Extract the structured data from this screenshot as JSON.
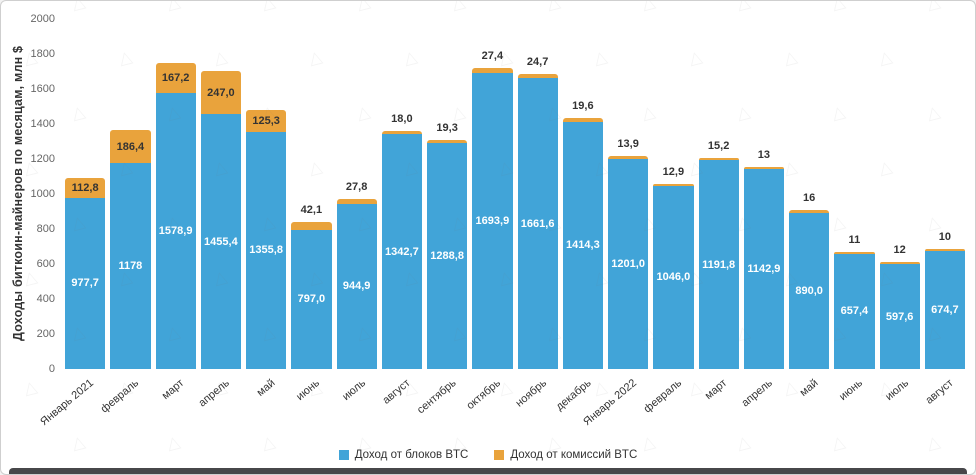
{
  "chart_data": {
    "type": "bar",
    "stacked": true,
    "ylabel": "Доходы биткоин-майнеров по месяцам, млн $",
    "ylim": [
      0,
      2000
    ],
    "yticks": [
      0,
      200,
      400,
      600,
      800,
      1000,
      1200,
      1400,
      1600,
      1800,
      2000
    ],
    "grid": false,
    "legend_position": "bottom-center",
    "categories": [
      "Январь 2021",
      "февраль",
      "март",
      "апрель",
      "май",
      "июнь",
      "июль",
      "август",
      "сентябрь",
      "октябрь",
      "ноябрь",
      "декабрь",
      "Январь 2022",
      "февраль",
      "март",
      "апрель",
      "май",
      "июнь",
      "июль",
      "август"
    ],
    "series": [
      {
        "name": "Доход от блоков BTC",
        "color": "#41a4d8",
        "values": [
          977.7,
          1178,
          1578.9,
          1455.4,
          1355.8,
          797.0,
          944.9,
          1342.7,
          1288.8,
          1693.9,
          1661.6,
          1414.3,
          1201.0,
          1046.0,
          1191.8,
          1142.9,
          890.0,
          657.4,
          597.6,
          674.7
        ],
        "labels": [
          "977,7",
          "1178",
          "1578,9",
          "1455,4",
          "1355,8",
          "797,0",
          "944,9",
          "1342,7",
          "1288,8",
          "1693,9",
          "1661,6",
          "1414,3",
          "1201,0",
          "1046,0",
          "1191,8",
          "1142,9",
          "890,0",
          "657,4",
          "597,6",
          "674,7"
        ]
      },
      {
        "name": "Доход от комиссий BTC",
        "color": "#e9a33c",
        "values": [
          112.8,
          186.4,
          167.2,
          247.0,
          125.3,
          42.1,
          27.8,
          18.0,
          19.3,
          27.4,
          24.7,
          19.6,
          13.9,
          12.9,
          15.2,
          13,
          16,
          11,
          12,
          10
        ],
        "labels": [
          "112,8",
          "186,4",
          "167,2",
          "247,0",
          "125,3",
          "42,1",
          "27,8",
          "18,0",
          "19,3",
          "27,4",
          "24,7",
          "19,6",
          "13,9",
          "12,9",
          "15,2",
          "13",
          "16",
          "11",
          "12",
          "10"
        ]
      }
    ],
    "watermark_glyph": "△"
  }
}
